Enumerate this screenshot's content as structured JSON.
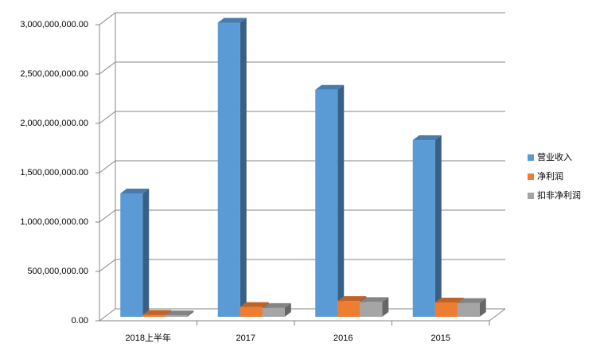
{
  "chart_data": {
    "type": "bar3d",
    "categories": [
      "2018上半年",
      "2017",
      "2016",
      "2015"
    ],
    "series": [
      {
        "name": "营业收入",
        "color": "#5b9bd5",
        "values": [
          1250000000,
          2980000000,
          2300000000,
          1790000000
        ]
      },
      {
        "name": "净利润",
        "color": "#ed7d31",
        "values": [
          20000000,
          100000000,
          160000000,
          145000000
        ]
      },
      {
        "name": "扣非净利润",
        "color": "#a5a5a5",
        "values": [
          15000000,
          90000000,
          150000000,
          140000000
        ]
      }
    ],
    "ylim": [
      0,
      3000000000
    ],
    "yticks": [
      {
        "value": 0,
        "label": "0.00"
      },
      {
        "value": 500000000,
        "label": "500,000,000.00"
      },
      {
        "value": 1000000000,
        "label": "1,000,000,000.00"
      },
      {
        "value": 1500000000,
        "label": "1,500,000,000.00"
      },
      {
        "value": 2000000000,
        "label": "2,000,000,000.00"
      },
      {
        "value": 2500000000,
        "label": "2,500,000,000.00"
      },
      {
        "value": 3000000000,
        "label": "3,000,000,000.00"
      }
    ],
    "grid": true,
    "legend": "right"
  }
}
